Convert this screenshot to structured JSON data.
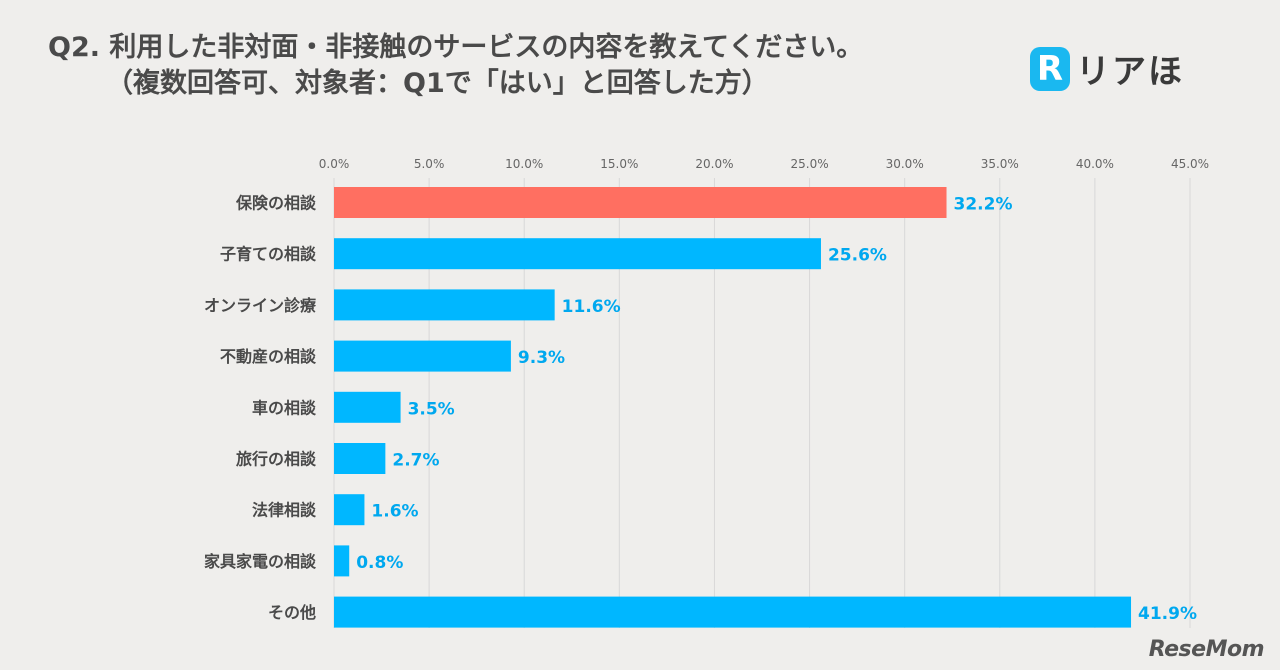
{
  "title_line1": "Q2. 利用した非対面・非接触のサービスの内容を教えてください。",
  "title_line2": "（複数回答可、対象者：Q1で「はい」と回答した方）",
  "logo": {
    "mark": "R",
    "text": "リアほ"
  },
  "watermark": "ReseMom",
  "colors": {
    "highlight": "#ff6f61",
    "bar": "#00b7ff",
    "label": "#00a8ef",
    "gridline": "#d8d8d8"
  },
  "chart_data": {
    "type": "bar",
    "orientation": "horizontal",
    "categories": [
      "保険の相談",
      "子育ての相談",
      "オンライン診療",
      "不動産の相談",
      "車の相談",
      "旅行の相談",
      "法律相談",
      "家具家電の相談",
      "その他"
    ],
    "values": [
      32.2,
      25.6,
      11.6,
      9.3,
      3.5,
      2.7,
      1.6,
      0.8,
      41.9
    ],
    "value_labels": [
      "32.2%",
      "25.6%",
      "11.6%",
      "9.3%",
      "3.5%",
      "2.7%",
      "1.6%",
      "0.8%",
      "41.9%"
    ],
    "highlight_index": 0,
    "xlim": [
      0,
      45
    ],
    "ticks": [
      0,
      5,
      10,
      15,
      20,
      25,
      30,
      35,
      40,
      45
    ],
    "tick_labels": [
      "0.0%",
      "5.0%",
      "10.0%",
      "15.0%",
      "20.0%",
      "25.0%",
      "30.0%",
      "35.0%",
      "40.0%",
      "45.0%"
    ],
    "axis_position": "top",
    "grid": true
  }
}
